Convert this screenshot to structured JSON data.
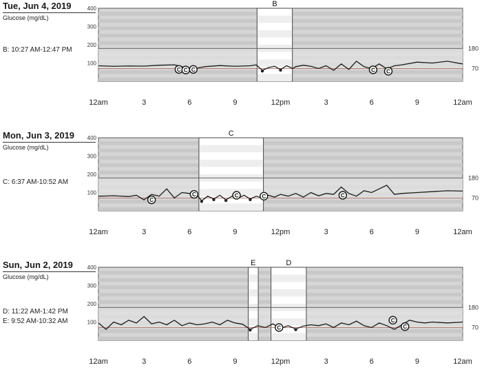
{
  "chart_data": [
    {
      "type": "line",
      "title": "Tue, Jun 4, 2019",
      "ylabel": "Glucose (mg/dL)",
      "ylim": [
        0,
        400
      ],
      "yticks": [
        "400",
        "300",
        "200",
        "100"
      ],
      "xlim": [
        0,
        24
      ],
      "xticks": [
        "12am",
        "3",
        "6",
        "9",
        "12pm",
        "3",
        "6",
        "9",
        "12am"
      ],
      "thresholds": {
        "high": 180,
        "low": 70,
        "high_label": "180",
        "low_label": "70"
      },
      "windows": [
        {
          "label": "B",
          "start": 10.45,
          "end": 12.78
        }
      ],
      "window_text": [
        "B: 10:27 AM-12:47 PM"
      ],
      "series": [
        {
          "x": [
            0,
            1,
            2,
            3,
            4,
            5,
            5.5,
            6,
            6.5,
            7,
            8,
            9,
            10,
            10.4,
            10.8,
            11.2,
            11.6,
            12,
            12.4,
            12.8,
            13,
            13.5,
            14,
            14.5,
            15,
            15.5,
            16,
            16.5,
            17,
            17.5,
            18,
            18.5,
            19,
            19.5,
            20,
            21,
            22,
            23,
            24
          ],
          "y": [
            85,
            82,
            84,
            83,
            88,
            90,
            80,
            65,
            72,
            80,
            86,
            82,
            85,
            90,
            60,
            75,
            82,
            65,
            85,
            70,
            80,
            88,
            82,
            70,
            85,
            60,
            95,
            65,
            110,
            80,
            70,
            95,
            68,
            85,
            90,
            105,
            100,
            110,
            95
          ]
        }
      ],
      "markers": [
        {
          "x": 5.3,
          "y": 65,
          "label": "C"
        },
        {
          "x": 5.75,
          "y": 62,
          "label": "C"
        },
        {
          "x": 6.25,
          "y": 65,
          "label": "C"
        },
        {
          "x": 18.1,
          "y": 63,
          "label": "C"
        },
        {
          "x": 19.1,
          "y": 55,
          "label": "C"
        }
      ]
    },
    {
      "type": "line",
      "title": "Mon, Jun 3, 2019",
      "ylabel": "Glucose (mg/dL)",
      "ylim": [
        0,
        400
      ],
      "yticks": [
        "400",
        "300",
        "200",
        "100"
      ],
      "xlim": [
        0,
        24
      ],
      "xticks": [
        "12am",
        "3",
        "6",
        "9",
        "12pm",
        "3",
        "6",
        "9",
        "12am"
      ],
      "thresholds": {
        "high": 180,
        "low": 70,
        "high_label": "180",
        "low_label": "70"
      },
      "windows": [
        {
          "label": "C",
          "start": 6.62,
          "end": 10.87
        }
      ],
      "window_text": [
        "C: 6:37 AM-10:52 AM"
      ],
      "series": [
        {
          "x": [
            0,
            1,
            2,
            2.5,
            3,
            3.5,
            4,
            4.5,
            5,
            5.5,
            6,
            6.5,
            6.8,
            7.2,
            7.6,
            8,
            8.4,
            8.8,
            9.2,
            9.6,
            10,
            10.4,
            10.8,
            11.2,
            11.6,
            12,
            12.5,
            13,
            13.5,
            14,
            14.5,
            15,
            15.5,
            16,
            16.5,
            17,
            17.5,
            18,
            18.5,
            19,
            19.5,
            20,
            21,
            22,
            23,
            24
          ],
          "y": [
            80,
            82,
            78,
            85,
            60,
            90,
            80,
            120,
            70,
            100,
            95,
            85,
            55,
            80,
            65,
            85,
            60,
            80,
            70,
            85,
            65,
            80,
            70,
            85,
            75,
            90,
            80,
            95,
            75,
            100,
            82,
            95,
            90,
            130,
            95,
            80,
            110,
            100,
            120,
            140,
            90,
            95,
            100,
            105,
            110,
            108
          ]
        }
      ],
      "markers": [
        {
          "x": 3.5,
          "y": 60,
          "label": "C"
        },
        {
          "x": 6.3,
          "y": 90,
          "label": "C"
        },
        {
          "x": 9.1,
          "y": 85,
          "label": "C"
        },
        {
          "x": 10.9,
          "y": 80,
          "label": "C"
        },
        {
          "x": 16.1,
          "y": 85,
          "label": "C"
        }
      ]
    },
    {
      "type": "line",
      "title": "Sun, Jun 2, 2019",
      "ylabel": "Glucose (mg/dL)",
      "ylim": [
        0,
        400
      ],
      "yticks": [
        "400",
        "300",
        "200",
        "100"
      ],
      "xlim": [
        0,
        24
      ],
      "xticks": [
        "12am",
        "3",
        "6",
        "9",
        "12pm",
        "3",
        "6",
        "9",
        "12am"
      ],
      "thresholds": {
        "high": 180,
        "low": 70,
        "high_label": "180",
        "low_label": "70"
      },
      "windows": [
        {
          "label": "E",
          "start": 9.87,
          "end": 10.53
        },
        {
          "label": "D",
          "start": 11.37,
          "end": 13.7
        }
      ],
      "window_text": [
        "D: 11:22 AM-1:42 PM",
        "E: 9:52 AM-10:32 AM"
      ],
      "series": [
        {
          "x": [
            0,
            0.5,
            1,
            1.5,
            2,
            2.5,
            3,
            3.5,
            4,
            4.5,
            5,
            5.5,
            6,
            6.5,
            7,
            7.5,
            8,
            8.5,
            9,
            9.5,
            10,
            10.5,
            11,
            11.5,
            12,
            12.5,
            13,
            13.5,
            14,
            14.5,
            15,
            15.5,
            16,
            16.5,
            17,
            17.5,
            18,
            18.5,
            19,
            19.5,
            20,
            20.5,
            21,
            21.5,
            22,
            23,
            24
          ],
          "y": [
            95,
            60,
            100,
            85,
            110,
            95,
            130,
            90,
            100,
            85,
            110,
            80,
            95,
            85,
            90,
            100,
            85,
            110,
            95,
            88,
            60,
            80,
            70,
            90,
            65,
            80,
            62,
            78,
            85,
            80,
            90,
            70,
            95,
            85,
            105,
            80,
            70,
            95,
            80,
            60,
            85,
            110,
            100,
            95,
            100,
            95,
            100
          ]
        }
      ],
      "markers": [
        {
          "x": 11.9,
          "y": 70,
          "label": "C"
        },
        {
          "x": 19.4,
          "y": 110,
          "label": "C"
        },
        {
          "x": 20.2,
          "y": 75,
          "label": "C"
        }
      ]
    }
  ]
}
